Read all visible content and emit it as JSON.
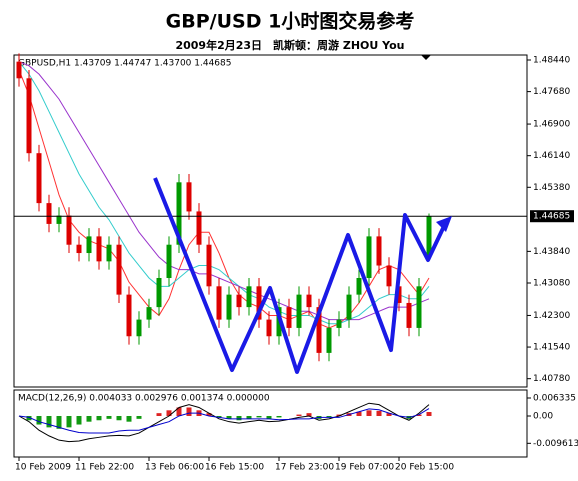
{
  "chart_data": [
    {
      "type": "candlestick",
      "title": "GBP/USD 1小时图交易参考",
      "subtitle": "2009年2月23日　凯斯顿：周游 ZHOU You",
      "header": "GBPUSD,H1 1.43709 1.44747 1.43700 1.44685",
      "categories": [
        "10 Feb 2009",
        null,
        null,
        null,
        null,
        null,
        "11 Feb 22:00",
        null,
        null,
        null,
        null,
        null,
        null,
        "13 Feb 06:00",
        null,
        null,
        null,
        null,
        null,
        "16 Feb 15:00",
        null,
        null,
        null,
        null,
        null,
        null,
        "17 Feb 23:00",
        null,
        null,
        null,
        null,
        null,
        "19 Feb 07:00",
        null,
        null,
        null,
        null,
        null,
        "20 Feb 15:00",
        null,
        null,
        null
      ],
      "open": [
        1.484,
        1.48,
        1.462,
        1.45,
        1.445,
        1.447,
        1.44,
        1.438,
        1.442,
        1.436,
        1.44,
        1.428,
        1.418,
        1.422,
        1.425,
        1.432,
        1.44,
        1.455,
        1.448,
        1.44,
        1.43,
        1.422,
        1.428,
        1.425,
        1.43,
        1.422,
        1.418,
        1.425,
        1.42,
        1.428,
        1.425,
        1.414,
        1.42,
        1.422,
        1.428,
        1.432,
        1.442,
        1.435,
        1.43,
        1.426,
        1.42,
        1.4371
      ],
      "high": [
        1.486,
        1.482,
        1.464,
        1.452,
        1.449,
        1.449,
        1.442,
        1.444,
        1.444,
        1.442,
        1.442,
        1.43,
        1.424,
        1.427,
        1.434,
        1.442,
        1.457,
        1.457,
        1.45,
        1.442,
        1.432,
        1.43,
        1.43,
        1.432,
        1.432,
        1.424,
        1.427,
        1.427,
        1.43,
        1.43,
        1.427,
        1.422,
        1.424,
        1.43,
        1.434,
        1.444,
        1.444,
        1.437,
        1.432,
        1.428,
        1.432,
        1.4475
      ],
      "low": [
        1.478,
        1.46,
        1.448,
        1.443,
        1.443,
        1.438,
        1.436,
        1.436,
        1.434,
        1.434,
        1.426,
        1.416,
        1.416,
        1.42,
        1.423,
        1.43,
        1.438,
        1.446,
        1.438,
        1.428,
        1.42,
        1.42,
        1.423,
        1.423,
        1.42,
        1.416,
        1.416,
        1.418,
        1.418,
        1.423,
        1.412,
        1.412,
        1.418,
        1.42,
        1.426,
        1.43,
        1.433,
        1.428,
        1.424,
        1.418,
        1.418,
        1.437
      ],
      "close": [
        1.48,
        1.462,
        1.45,
        1.445,
        1.447,
        1.44,
        1.438,
        1.442,
        1.436,
        1.44,
        1.428,
        1.418,
        1.422,
        1.425,
        1.432,
        1.44,
        1.455,
        1.448,
        1.44,
        1.43,
        1.422,
        1.428,
        1.425,
        1.43,
        1.422,
        1.418,
        1.425,
        1.42,
        1.428,
        1.425,
        1.414,
        1.42,
        1.422,
        1.428,
        1.432,
        1.442,
        1.435,
        1.43,
        1.426,
        1.42,
        1.43,
        1.4469
      ],
      "up_color": "#009900",
      "down_color": "#dd0000",
      "overlays": [
        {
          "color": "#ff3333",
          "values": [
            1.482,
            1.476,
            1.468,
            1.46,
            1.452,
            1.446,
            1.443,
            1.441,
            1.44,
            1.439,
            1.436,
            1.431,
            1.428,
            1.425,
            1.423,
            1.427,
            1.434,
            1.44,
            1.443,
            1.443,
            1.438,
            1.432,
            1.428,
            1.426,
            1.425,
            1.423,
            1.423,
            1.422,
            1.423,
            1.424,
            1.421,
            1.42,
            1.421,
            1.423,
            1.426,
            1.43,
            1.434,
            1.435,
            1.434,
            1.431,
            1.428,
            1.432
          ]
        },
        {
          "color": "#33cccc",
          "values": [
            1.484,
            1.481,
            1.477,
            1.472,
            1.467,
            1.462,
            1.457,
            1.453,
            1.449,
            1.446,
            1.442,
            1.438,
            1.435,
            1.432,
            1.43,
            1.43,
            1.432,
            1.434,
            1.435,
            1.435,
            1.434,
            1.432,
            1.43,
            1.428,
            1.427,
            1.425,
            1.424,
            1.423,
            1.423,
            1.423,
            1.422,
            1.421,
            1.421,
            1.422,
            1.423,
            1.425,
            1.427,
            1.428,
            1.428,
            1.427,
            1.427,
            1.43
          ]
        },
        {
          "color": "#9933cc",
          "values": [
            1.484,
            1.483,
            1.481,
            1.478,
            1.475,
            1.471,
            1.467,
            1.463,
            1.459,
            1.455,
            1.451,
            1.447,
            1.443,
            1.44,
            1.437,
            1.435,
            1.434,
            1.434,
            1.433,
            1.433,
            1.432,
            1.431,
            1.43,
            1.429,
            1.428,
            1.427,
            1.426,
            1.425,
            1.424,
            1.424,
            1.423,
            1.422,
            1.422,
            1.422,
            1.422,
            1.423,
            1.424,
            1.425,
            1.425,
            1.425,
            1.426,
            1.427
          ]
        }
      ],
      "last": {
        "value": 1.44685,
        "label": "1.44685"
      },
      "ylim": [
        1.4058,
        1.4856
      ],
      "yticks": [
        {
          "value": 1.4844,
          "label": "1.48440"
        },
        {
          "value": 1.4768,
          "label": "1.47680"
        },
        {
          "value": 1.469,
          "label": "1.46900"
        },
        {
          "value": 1.4614,
          "label": "1.46140"
        },
        {
          "value": 1.4538,
          "label": "1.45380"
        },
        {
          "value": 1.4384,
          "label": "1.43840"
        },
        {
          "value": 1.4308,
          "label": "1.43080"
        },
        {
          "value": 1.423,
          "label": "1.42300"
        },
        {
          "value": 1.4154,
          "label": "1.41540"
        },
        {
          "value": 1.4078,
          "label": "1.40780"
        }
      ]
    },
    {
      "type": "macd",
      "header": "MACD(12,26,9) 0.004033 0.002976 0.001374 0.000000",
      "histogram": {
        "up_color": "#dd2222",
        "down_color": "#119911",
        "values": [
          0,
          -0.0015,
          -0.003,
          -0.004,
          -0.0045,
          -0.004,
          -0.003,
          -0.002,
          -0.0015,
          -0.001,
          -0.0015,
          -0.002,
          -0.001,
          0,
          0.001,
          0.002,
          0.003,
          0.003,
          0.002,
          0.001,
          -0.0005,
          -0.001,
          -0.0015,
          -0.001,
          -0.0005,
          -0.001,
          -0.0005,
          0,
          0.0005,
          0.001,
          -0.001,
          -0.0005,
          0.0005,
          0.001,
          0.0015,
          0.002,
          0.0018,
          0.001,
          0,
          -0.001,
          0.0005,
          0.0014
        ]
      },
      "series": [
        {
          "color": "#000000",
          "values": [
            0,
            -0.002,
            -0.005,
            -0.007,
            -0.0085,
            -0.009,
            -0.0088,
            -0.008,
            -0.0075,
            -0.007,
            -0.0068,
            -0.007,
            -0.006,
            -0.004,
            -0.002,
            0,
            0.003,
            0.004,
            0.003,
            0.001,
            -0.001,
            -0.002,
            -0.0025,
            -0.002,
            -0.0015,
            -0.002,
            -0.0018,
            -0.0012,
            -0.0005,
            0,
            -0.0015,
            -0.001,
            0,
            0.0015,
            0.003,
            0.0045,
            0.004,
            0.002,
            0,
            -0.0015,
            0.001,
            0.004
          ]
        },
        {
          "color": "#0000cc",
          "values": [
            0,
            -0.0005,
            -0.002,
            -0.003,
            -0.004,
            -0.005,
            -0.0058,
            -0.006,
            -0.006,
            -0.006,
            -0.0053,
            -0.005,
            -0.005,
            -0.004,
            -0.003,
            -0.002,
            0,
            0.001,
            0.001,
            0,
            -0.0005,
            -0.001,
            -0.001,
            -0.001,
            -0.001,
            -0.001,
            -0.0013,
            -0.0012,
            -0.001,
            -0.001,
            -0.0005,
            -0.0005,
            -0.0005,
            0.0005,
            0.0015,
            0.0025,
            0.0022,
            0.001,
            0,
            -0.0005,
            0.0005,
            0.0026
          ]
        }
      ],
      "ylim": [
        -0.01443,
        0.00915
      ],
      "yticks": [
        {
          "value": 0.006335,
          "label": "0.006335"
        },
        {
          "value": 0,
          "label": "0.00"
        },
        {
          "value": -0.009613,
          "label": "-0.009613"
        }
      ]
    }
  ]
}
